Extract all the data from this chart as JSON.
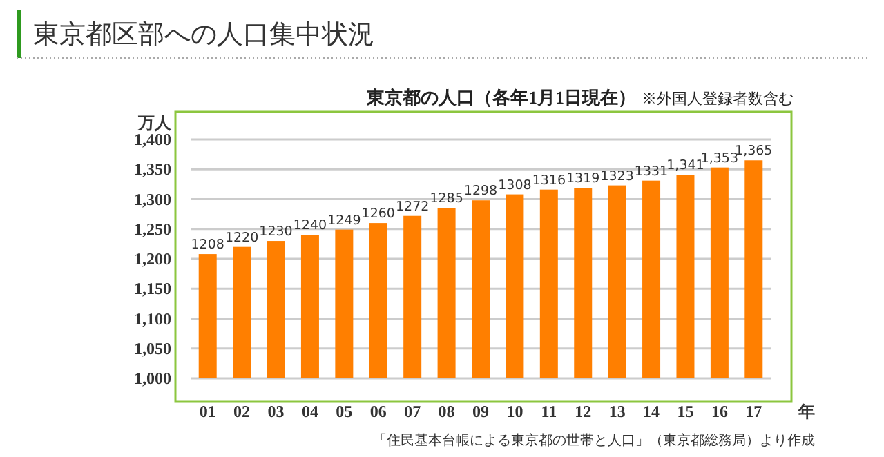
{
  "chart_data": {
    "type": "bar",
    "title": "東京都区部への人口集中状況",
    "subtitle": "東京都の人口（各年1月1日現在）",
    "xlabel": "年",
    "ylabel": "万人",
    "annotations": [
      "※外国人登録者数含む",
      "「住民基本台帳による東京都の世帯と人口」（東京都総務局）より作成"
    ],
    "categories": [
      "01",
      "02",
      "03",
      "04",
      "05",
      "06",
      "07",
      "08",
      "09",
      "10",
      "11",
      "12",
      "13",
      "14",
      "15",
      "16",
      "17"
    ],
    "values": [
      1208,
      1220,
      1230,
      1240,
      1249,
      1260,
      1272,
      1285,
      1298,
      1308,
      1316,
      1319,
      1323,
      1331,
      1341,
      1353,
      1365
    ],
    "value_labels": [
      "1208",
      "1220",
      "1230",
      "1240",
      "1249",
      "1260",
      "1272",
      "1285",
      "1298",
      "1308",
      "1316",
      "1319",
      "1323",
      "1331",
      "1,341",
      "1,353",
      "1,365"
    ],
    "color": "#ff7f00",
    "ylim": [
      1000,
      1400
    ],
    "yticks": [
      {
        "value": 1000,
        "label": "1,000"
      },
      {
        "value": 1050,
        "label": "1,050"
      },
      {
        "value": 1100,
        "label": "1,100"
      },
      {
        "value": 1150,
        "label": "1,150"
      },
      {
        "value": 1200,
        "label": "1,200"
      },
      {
        "value": 1250,
        "label": "1,250"
      },
      {
        "value": 1300,
        "label": "1,300"
      },
      {
        "value": 1350,
        "label": "1,350"
      },
      {
        "value": 1400,
        "label": "1,400"
      }
    ],
    "grid": "y"
  }
}
